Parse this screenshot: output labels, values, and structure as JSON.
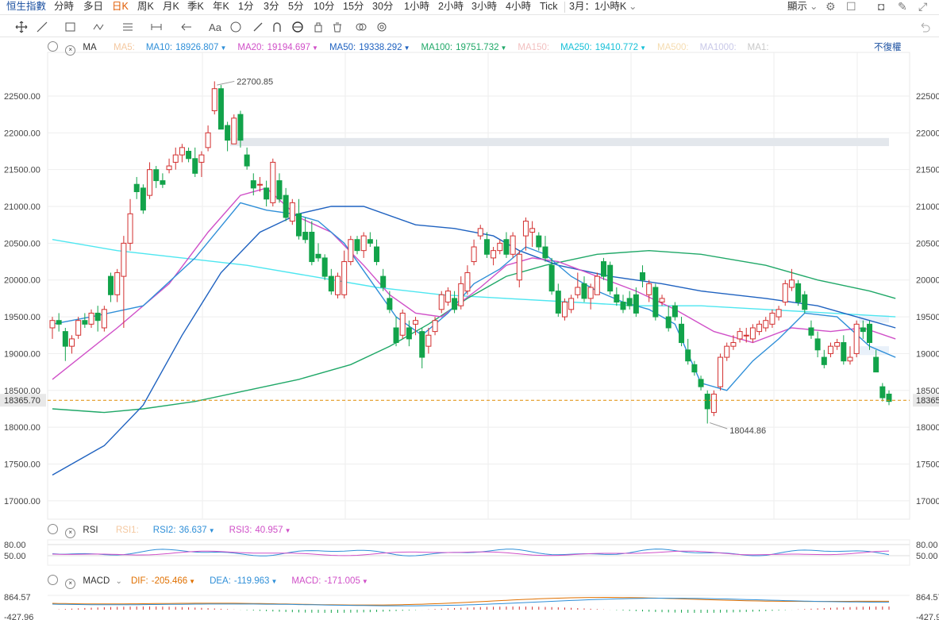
{
  "toolbar": {
    "brand": "恒生指數",
    "timeframes": [
      "分時",
      "多日",
      "日K",
      "周K",
      "月K",
      "季K",
      "年K",
      "1分",
      "3分",
      "5分",
      "10分",
      "15分",
      "30分",
      "1小時",
      "2小時",
      "3小時",
      "4小時",
      "Tick"
    ],
    "active": "日K",
    "period_select": "3月：1小時K",
    "display": "顯示"
  },
  "ma_legend": {
    "label": "MA",
    "items": [
      {
        "name": "MA5:",
        "value": "",
        "color": "#f4c8a0"
      },
      {
        "name": "MA10:",
        "value": "18926.807",
        "color": "#2f8fd8"
      },
      {
        "name": "MA20:",
        "value": "19194.697",
        "color": "#d050c8"
      },
      {
        "name": "MA50:",
        "value": "19338.292",
        "color": "#1f62c0"
      },
      {
        "name": "MA100:",
        "value": "19751.732",
        "color": "#20a868"
      },
      {
        "name": "MA150:",
        "value": "",
        "color": "#f2c0c0"
      },
      {
        "name": "MA250:",
        "value": "19410.772",
        "color": "#17c0d8"
      },
      {
        "name": "MA500:",
        "value": "",
        "color": "#f5dcb0"
      },
      {
        "name": "MA1000:",
        "value": "",
        "color": "#c8c8e8"
      },
      {
        "name": "MA1:",
        "value": "",
        "color": "#c8c8c8"
      }
    ],
    "adjust": "不復權"
  },
  "rsi_legend": {
    "label": "RSI",
    "items": [
      {
        "name": "RSI1:",
        "value": "",
        "color": "#f4c8a0"
      },
      {
        "name": "RSI2:",
        "value": "36.637",
        "color": "#2f8fd8"
      },
      {
        "name": "RSI3:",
        "value": "40.957",
        "color": "#d050c8"
      }
    ]
  },
  "macd_legend": {
    "label": "MACD",
    "items": [
      {
        "name": "DIF:",
        "value": "-205.466",
        "color": "#e07000"
      },
      {
        "name": "DEA:",
        "value": "-119.963",
        "color": "#2f8fd8"
      },
      {
        "name": "MACD:",
        "value": "-171.005",
        "color": "#d050c8"
      }
    ]
  },
  "colors": {
    "up": "#d32f2f",
    "down": "#12a34a",
    "grid": "#eeeeee",
    "last": "#e08a00"
  },
  "chart_data": {
    "type": "candlestick",
    "y_ticks": [
      17000,
      17500,
      18000,
      18500,
      19000,
      19500,
      20000,
      20500,
      21000,
      21500,
      22000,
      22500
    ],
    "y_tick_labels": [
      "17000.00",
      "17500.00",
      "18000.00",
      "18500.00",
      "19000.00",
      "19500.00",
      "20000.00",
      "20500.00",
      "21000.00",
      "21500.00",
      "22000.00",
      "22500.00"
    ],
    "ylim": [
      16750,
      23050
    ],
    "last_price": 18365.7,
    "last_price_label": "18365.70",
    "high_label": "22700.85",
    "low_label": "18044.86",
    "candles": [
      [
        19350,
        19500,
        19200,
        19450
      ],
      [
        19450,
        19550,
        19300,
        19400
      ],
      [
        19300,
        19350,
        18900,
        19100
      ],
      [
        19100,
        19250,
        19000,
        19200
      ],
      [
        19250,
        19500,
        19200,
        19450
      ],
      [
        19450,
        19550,
        19350,
        19400
      ],
      [
        19400,
        19600,
        19350,
        19550
      ],
      [
        19550,
        19650,
        19300,
        19450
      ],
      [
        19350,
        19650,
        19300,
        19600
      ],
      [
        20050,
        20100,
        19700,
        19800
      ],
      [
        19800,
        20150,
        19700,
        20100
      ],
      [
        20050,
        20600,
        19350,
        20500
      ],
      [
        20500,
        21100,
        20400,
        20900
      ],
      [
        21300,
        21400,
        21100,
        21200
      ],
      [
        21250,
        21300,
        20900,
        20950
      ],
      [
        21150,
        21600,
        21100,
        21500
      ],
      [
        21500,
        21550,
        21250,
        21350
      ],
      [
        21350,
        21450,
        21250,
        21300
      ],
      [
        21500,
        21650,
        21450,
        21550
      ],
      [
        21600,
        21800,
        21500,
        21700
      ],
      [
        21700,
        21850,
        21600,
        21800
      ],
      [
        21750,
        21800,
        21600,
        21650
      ],
      [
        21650,
        21800,
        21400,
        21450
      ],
      [
        21600,
        21750,
        21400,
        21700
      ],
      [
        21800,
        22100,
        21750,
        22000
      ],
      [
        22300,
        22700,
        22250,
        22600
      ],
      [
        22600,
        22650,
        22100,
        22050
      ],
      [
        22100,
        22150,
        21750,
        21900
      ],
      [
        21850,
        22250,
        21850,
        22200
      ],
      [
        22250,
        22300,
        21800,
        21900
      ],
      [
        21700,
        21800,
        21500,
        21550
      ],
      [
        21350,
        21450,
        21150,
        21250
      ],
      [
        21300,
        21400,
        21200,
        21300
      ],
      [
        21250,
        21350,
        21000,
        21100
      ],
      [
        21050,
        21650,
        21000,
        21600
      ],
      [
        21350,
        21450,
        21050,
        21100
      ],
      [
        21150,
        21250,
        20800,
        20850
      ],
      [
        20800,
        21100,
        20750,
        21050
      ],
      [
        20900,
        21100,
        20550,
        20600
      ],
      [
        20650,
        20850,
        20500,
        20550
      ],
      [
        20650,
        20800,
        20200,
        20250
      ],
      [
        20350,
        20500,
        20250,
        20300
      ],
      [
        20300,
        20350,
        20000,
        20050
      ],
      [
        20050,
        20150,
        19800,
        19850
      ],
      [
        19800,
        20100,
        19750,
        20050
      ],
      [
        19800,
        20400,
        19750,
        20250
      ],
      [
        20250,
        20600,
        20200,
        20550
      ],
      [
        20550,
        20600,
        20350,
        20400
      ],
      [
        20400,
        20650,
        20300,
        20600
      ],
      [
        20550,
        20650,
        20450,
        20500
      ],
      [
        20450,
        20550,
        20200,
        20250
      ],
      [
        20050,
        20150,
        19850,
        19900
      ],
      [
        19750,
        19850,
        19550,
        19600
      ],
      [
        19350,
        19500,
        19100,
        19150
      ],
      [
        19250,
        19600,
        19200,
        19550
      ],
      [
        19350,
        19450,
        19100,
        19200
      ],
      [
        19400,
        19500,
        19250,
        19450
      ],
      [
        19300,
        19350,
        18800,
        18950
      ],
      [
        19100,
        19350,
        19000,
        19250
      ],
      [
        19300,
        19500,
        19250,
        19450
      ],
      [
        19600,
        19850,
        19550,
        19800
      ],
      [
        19700,
        19900,
        19650,
        19850
      ],
      [
        19750,
        19850,
        19550,
        19600
      ],
      [
        19650,
        20050,
        19600,
        19950
      ],
      [
        19850,
        20200,
        19800,
        20100
      ],
      [
        20250,
        20550,
        20200,
        20450
      ],
      [
        20600,
        20750,
        20550,
        20700
      ],
      [
        20550,
        20650,
        20300,
        20350
      ],
      [
        20300,
        20450,
        20200,
        20400
      ],
      [
        20400,
        20550,
        20350,
        20500
      ],
      [
        20550,
        20650,
        20300,
        20350
      ],
      [
        20350,
        20650,
        20300,
        20600
      ],
      [
        20000,
        20400,
        19900,
        20350
      ],
      [
        20600,
        20850,
        20400,
        20800
      ],
      [
        20650,
        20800,
        20450,
        20700
      ],
      [
        20600,
        20650,
        20400,
        20450
      ],
      [
        20450,
        20600,
        20250,
        20300
      ],
      [
        20200,
        20300,
        19800,
        19850
      ],
      [
        19850,
        19950,
        19500,
        19550
      ],
      [
        19500,
        19750,
        19450,
        19700
      ],
      [
        19600,
        19800,
        19550,
        19750
      ],
      [
        19800,
        20100,
        19750,
        19900
      ],
      [
        19950,
        20050,
        19700,
        19750
      ],
      [
        19750,
        19950,
        19600,
        19900
      ],
      [
        19800,
        20100,
        19800,
        20050
      ],
      [
        20250,
        20300,
        20000,
        20050
      ],
      [
        20200,
        20250,
        19800,
        19850
      ],
      [
        19800,
        19900,
        19650,
        19700
      ],
      [
        19700,
        19800,
        19550,
        19600
      ],
      [
        19750,
        19850,
        19600,
        19650
      ],
      [
        19800,
        19900,
        19500,
        19550
      ],
      [
        20100,
        20200,
        19900,
        20000
      ],
      [
        19800,
        20000,
        19700,
        19950
      ],
      [
        19900,
        19950,
        19450,
        19500
      ],
      [
        19700,
        19800,
        19650,
        19750
      ],
      [
        19500,
        19650,
        19300,
        19350
      ],
      [
        19650,
        19700,
        19450,
        19500
      ],
      [
        19400,
        19500,
        19100,
        19150
      ],
      [
        19050,
        19200,
        18850,
        18900
      ],
      [
        18850,
        18900,
        18700,
        18750
      ],
      [
        18650,
        18700,
        18500,
        18550
      ],
      [
        18450,
        18500,
        18050,
        18250
      ],
      [
        18200,
        18500,
        18150,
        18450
      ],
      [
        18550,
        19000,
        18500,
        18950
      ],
      [
        18950,
        19150,
        18900,
        19100
      ],
      [
        19100,
        19250,
        19050,
        19150
      ],
      [
        19200,
        19350,
        19150,
        19300
      ],
      [
        19250,
        19350,
        19150,
        19250
      ],
      [
        19200,
        19400,
        19150,
        19350
      ],
      [
        19300,
        19450,
        19250,
        19400
      ],
      [
        19350,
        19500,
        19300,
        19450
      ],
      [
        19400,
        19600,
        19350,
        19550
      ],
      [
        19500,
        19650,
        19450,
        19600
      ],
      [
        19700,
        20000,
        19650,
        19950
      ],
      [
        19900,
        20150,
        19850,
        20000
      ],
      [
        19950,
        20000,
        19650,
        19700
      ],
      [
        19800,
        19850,
        19550,
        19600
      ],
      [
        19350,
        19450,
        19200,
        19250
      ],
      [
        19200,
        19300,
        18950,
        19050
      ],
      [
        18950,
        19050,
        18800,
        18850
      ],
      [
        19000,
        19150,
        18950,
        19100
      ],
      [
        19100,
        19200,
        19050,
        19150
      ],
      [
        19150,
        19250,
        18850,
        18900
      ],
      [
        18900,
        19100,
        18850,
        18950
      ],
      [
        19000,
        19450,
        18950,
        19400
      ],
      [
        19350,
        19450,
        19200,
        19300
      ],
      [
        19400,
        19450,
        19050,
        19150
      ],
      [
        18950,
        19050,
        18750,
        18750
      ],
      [
        18550,
        18600,
        18350,
        18400
      ],
      [
        18450,
        18500,
        18300,
        18350
      ]
    ],
    "ma10": [
      [
        0,
        19400
      ],
      [
        6,
        19500
      ],
      [
        14,
        19650
      ],
      [
        22,
        20300
      ],
      [
        29,
        21050
      ],
      [
        33,
        20950
      ],
      [
        37,
        20900
      ],
      [
        41,
        20800
      ],
      [
        45,
        20500
      ],
      [
        49,
        20000
      ],
      [
        53,
        19500
      ],
      [
        57,
        19250
      ],
      [
        61,
        19550
      ],
      [
        65,
        19950
      ],
      [
        69,
        20150
      ],
      [
        73,
        20450
      ],
      [
        76,
        20350
      ],
      [
        80,
        20050
      ],
      [
        84,
        19850
      ],
      [
        88,
        19700
      ],
      [
        92,
        19600
      ],
      [
        96,
        19400
      ],
      [
        100,
        18600
      ],
      [
        104,
        18500
      ],
      [
        108,
        18900
      ],
      [
        112,
        19200
      ],
      [
        116,
        19550
      ],
      [
        121,
        19500
      ],
      [
        126,
        19100
      ],
      [
        130,
        18950
      ]
    ],
    "ma20": [
      [
        0,
        18650
      ],
      [
        10,
        19350
      ],
      [
        18,
        19950
      ],
      [
        24,
        20650
      ],
      [
        29,
        21150
      ],
      [
        33,
        21250
      ],
      [
        38,
        20850
      ],
      [
        43,
        20650
      ],
      [
        48,
        20200
      ],
      [
        52,
        19800
      ],
      [
        56,
        19550
      ],
      [
        60,
        19500
      ],
      [
        66,
        19900
      ],
      [
        70,
        20200
      ],
      [
        74,
        20300
      ],
      [
        78,
        20250
      ],
      [
        84,
        20050
      ],
      [
        90,
        19850
      ],
      [
        96,
        19600
      ],
      [
        102,
        19300
      ],
      [
        108,
        19150
      ],
      [
        114,
        19350
      ],
      [
        120,
        19300
      ],
      [
        125,
        19350
      ],
      [
        130,
        19200
      ]
    ],
    "ma50": [
      [
        0,
        17350
      ],
      [
        8,
        17750
      ],
      [
        14,
        18300
      ],
      [
        20,
        19250
      ],
      [
        26,
        20100
      ],
      [
        32,
        20650
      ],
      [
        38,
        20900
      ],
      [
        43,
        21000
      ],
      [
        48,
        21000
      ],
      [
        56,
        20750
      ],
      [
        62,
        20700
      ],
      [
        68,
        20600
      ],
      [
        72,
        20400
      ],
      [
        78,
        20200
      ],
      [
        86,
        20050
      ],
      [
        94,
        19950
      ],
      [
        100,
        19850
      ],
      [
        110,
        19750
      ],
      [
        118,
        19650
      ],
      [
        124,
        19500
      ],
      [
        130,
        19350
      ]
    ],
    "ma100": [
      [
        0,
        18250
      ],
      [
        8,
        18200
      ],
      [
        14,
        18250
      ],
      [
        22,
        18350
      ],
      [
        30,
        18500
      ],
      [
        38,
        18650
      ],
      [
        46,
        18850
      ],
      [
        52,
        19100
      ],
      [
        58,
        19400
      ],
      [
        64,
        19750
      ],
      [
        70,
        20050
      ],
      [
        76,
        20200
      ],
      [
        84,
        20350
      ],
      [
        92,
        20400
      ],
      [
        100,
        20350
      ],
      [
        110,
        20200
      ],
      [
        118,
        20000
      ],
      [
        126,
        19850
      ],
      [
        130,
        19750
      ]
    ],
    "ma250": [
      [
        0,
        20550
      ],
      [
        10,
        20400
      ],
      [
        20,
        20300
      ],
      [
        30,
        20200
      ],
      [
        40,
        20050
      ],
      [
        50,
        19900
      ],
      [
        60,
        19800
      ],
      [
        70,
        19750
      ],
      [
        80,
        19700
      ],
      [
        90,
        19650
      ],
      [
        100,
        19650
      ],
      [
        110,
        19600
      ],
      [
        120,
        19550
      ],
      [
        130,
        19500
      ]
    ],
    "rsi_ticks": [
      "80.00",
      "50.00"
    ],
    "macd_ticks": [
      "864.57",
      "-427.96"
    ]
  }
}
